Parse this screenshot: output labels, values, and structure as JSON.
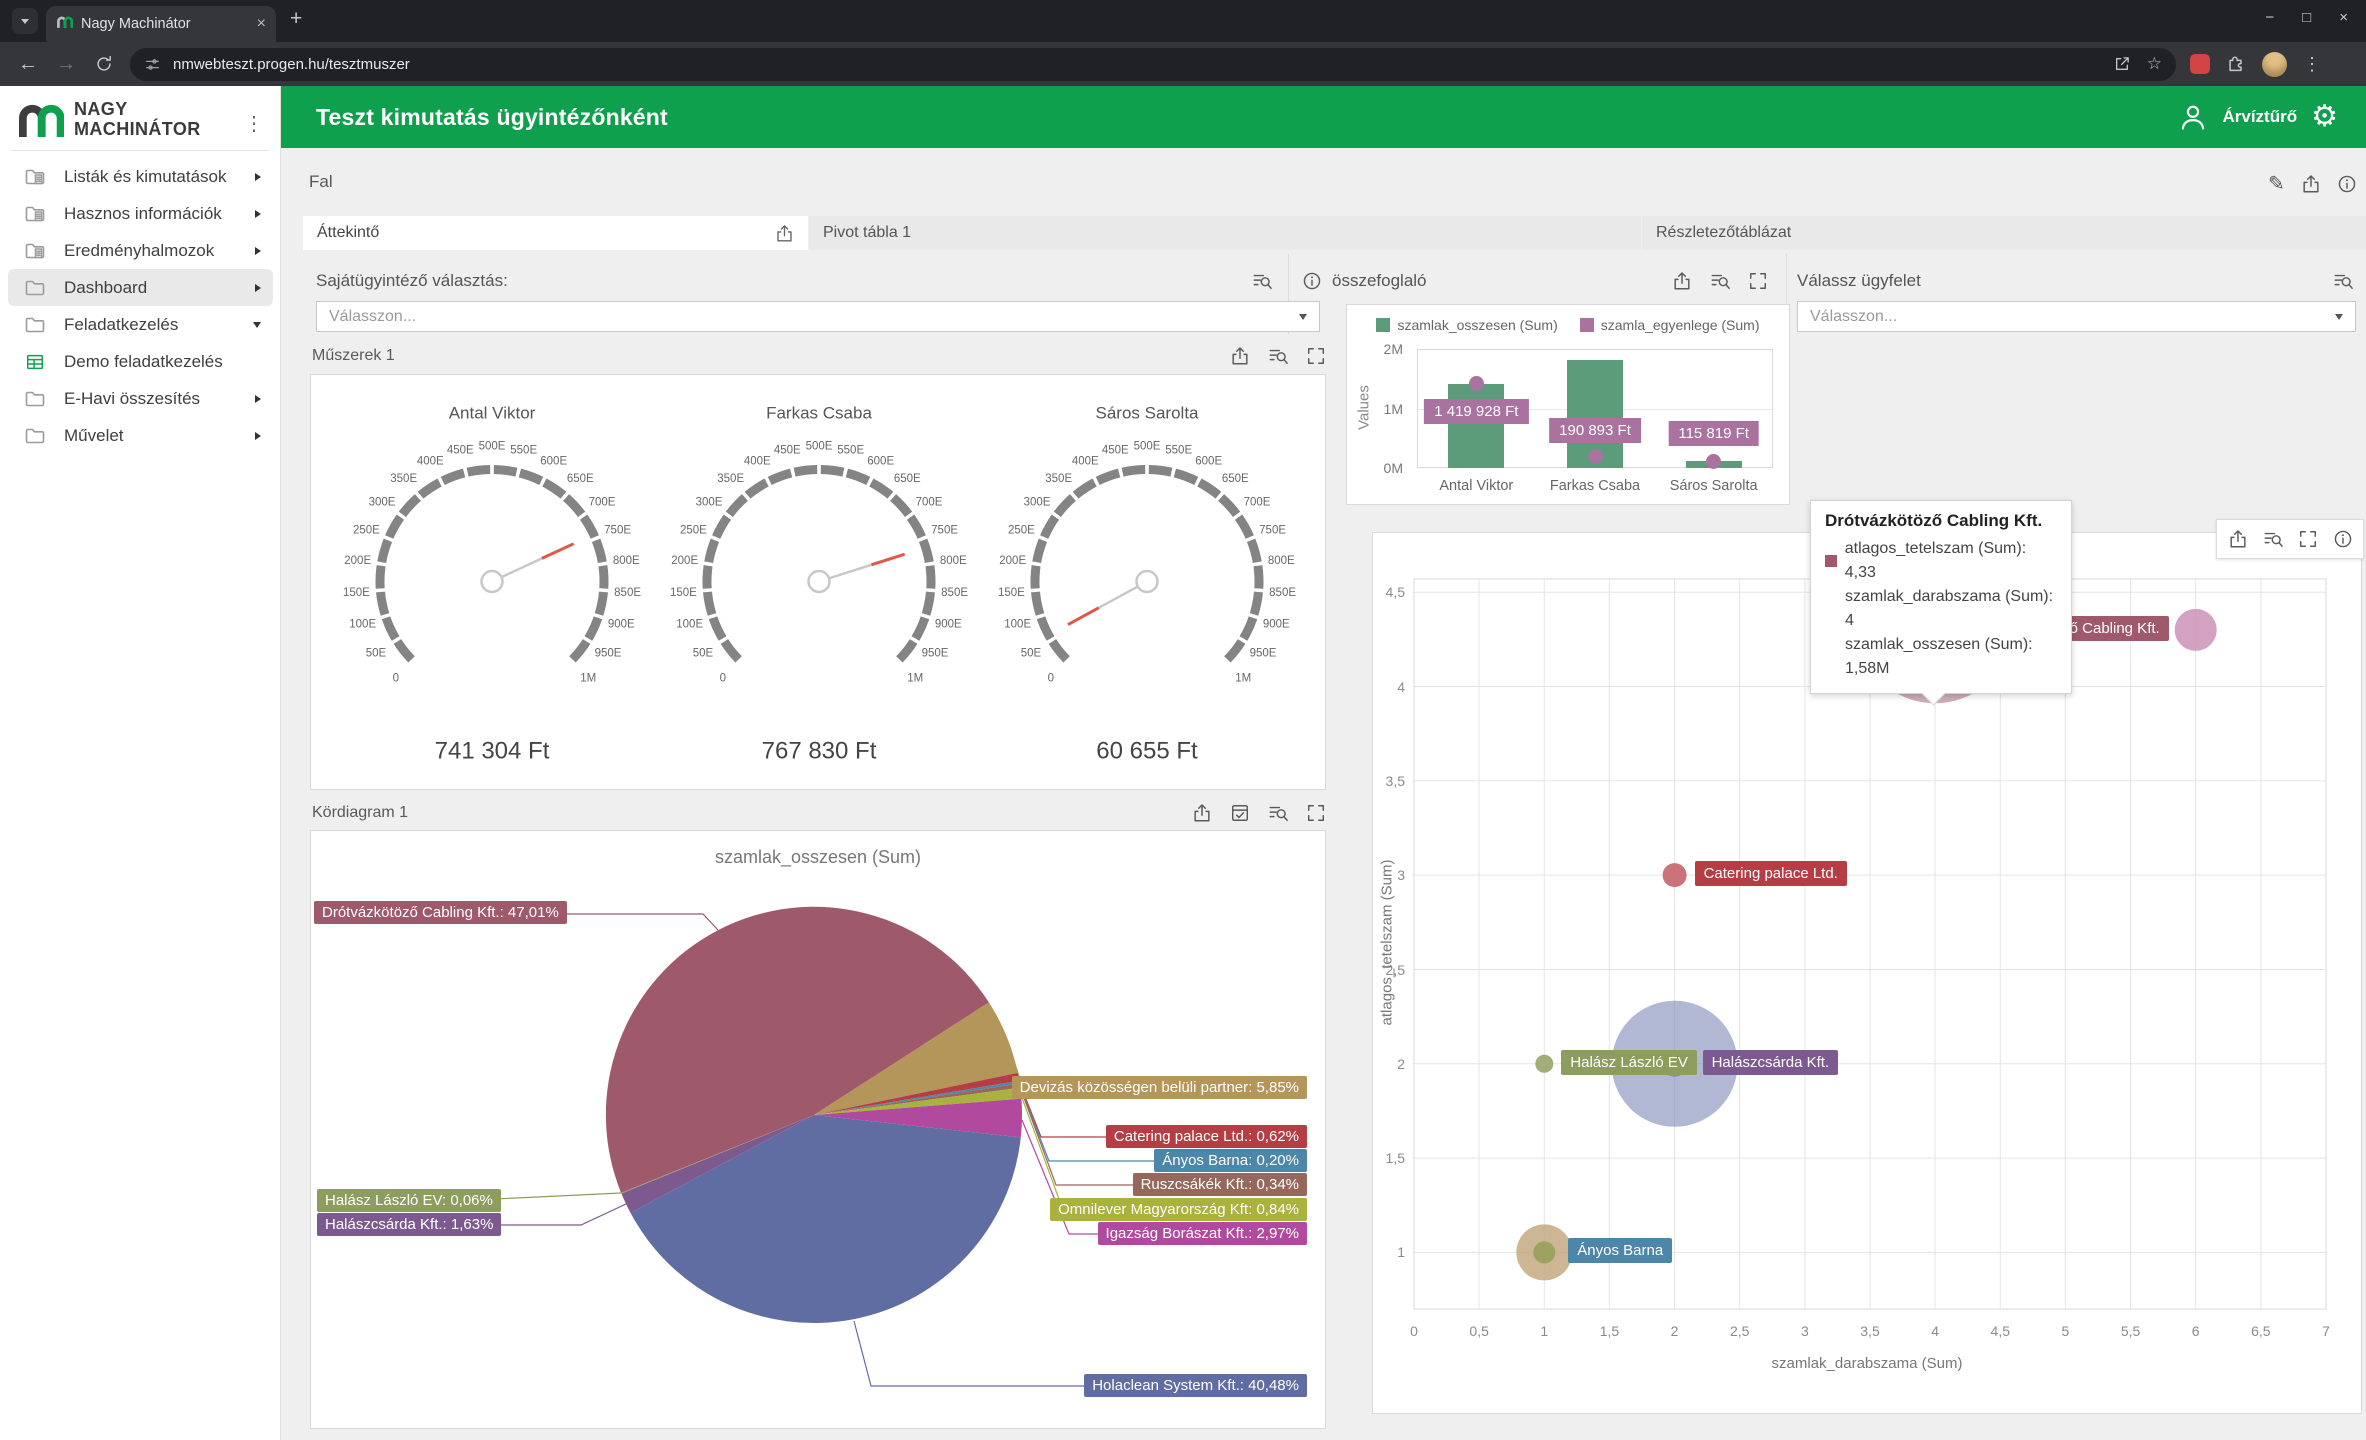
{
  "browser": {
    "tab_title": "Nagy Machinátor",
    "url": "nmwebteszt.progen.hu/tesztmuszer"
  },
  "sidebar": {
    "logo_line1": "NAGY",
    "logo_line2": "MACHINÁTOR",
    "items": [
      {
        "label": "Listák és kimutatások",
        "icon": "folder-doc-icon",
        "arrow": "right",
        "active": false
      },
      {
        "label": "Hasznos információk",
        "icon": "folder-doc-icon",
        "arrow": "right",
        "active": false
      },
      {
        "label": "Eredményhalmozok",
        "icon": "folder-doc-icon",
        "arrow": "right",
        "active": false
      },
      {
        "label": "Dashboard",
        "icon": "folder-icon",
        "arrow": "right",
        "active": true
      },
      {
        "label": "Feladatkezelés",
        "icon": "folder-icon",
        "arrow": "down",
        "active": false
      },
      {
        "label": "Demo feladatkezelés",
        "icon": "table-icon",
        "arrow": "",
        "active": false
      },
      {
        "label": "E-Havi összesítés",
        "icon": "folder-icon",
        "arrow": "right",
        "active": false
      },
      {
        "label": "Művelet",
        "icon": "folder-icon",
        "arrow": "right",
        "active": false
      }
    ]
  },
  "header": {
    "title": "Teszt kimutatás ügyintézőnként",
    "user": "Árvíztűrő"
  },
  "page": {
    "section": "Fal",
    "tabs": [
      "Áttekintő",
      "Pivot tábla 1",
      "Részletezőtáblázat"
    ]
  },
  "panels": {
    "agent_select": {
      "title": "Sajátügyintéző választás:",
      "placeholder": "Válasszon..."
    },
    "gauges": {
      "title": "Műszerek 1"
    },
    "pie": {
      "title": "Kördiagram 1"
    },
    "summary": {
      "title": "összefoglaló"
    },
    "customer_select": {
      "title": "Válassz ügyfelet",
      "placeholder": "Válasszon..."
    }
  },
  "tooltip": {
    "title": "Drótvázkötöző Cabling Kft.",
    "rows": [
      {
        "swatch": "#9e5a6b",
        "text": "atlagos_tetelszam (Sum): 4,33"
      },
      {
        "text": "szamlak_darabszama (Sum): 4"
      },
      {
        "text": "szamlak_osszesen (Sum): 1,58M"
      }
    ]
  },
  "chart_data": [
    {
      "type": "gauge",
      "title": "Antal Viktor",
      "value": 741304,
      "value_label": "741 304 Ft",
      "min": 0,
      "max": 1000000,
      "tick_step": 50000
    },
    {
      "type": "gauge",
      "title": "Farkas Csaba",
      "value": 767830,
      "value_label": "767 830 Ft",
      "min": 0,
      "max": 1000000,
      "tick_step": 50000
    },
    {
      "type": "gauge",
      "title": "Sáros Sarolta",
      "value": 60655,
      "value_label": "60 655 Ft",
      "min": 0,
      "max": 1000000,
      "tick_step": 50000
    },
    {
      "type": "bar",
      "title": "összefoglaló",
      "categories": [
        "Antal Viktor",
        "Farkas Csaba",
        "Sáros Sarolta"
      ],
      "series": [
        {
          "name": "szamlak_osszesen (Sum)",
          "style": "bar",
          "color": "#5d9c7b",
          "values": [
            1420000,
            1820000,
            115000
          ]
        },
        {
          "name": "szamla_egyenlege (Sum)",
          "style": "point",
          "color": "#a9729f",
          "values": [
            1419928,
            190893,
            115819
          ],
          "labels": [
            "1 419 928 Ft",
            "190 893 Ft",
            "115 819 Ft"
          ]
        }
      ],
      "ylabel": "Values",
      "ylim": [
        0,
        2000000
      ],
      "yticks": [
        {
          "v": 0,
          "label": "0M"
        },
        {
          "v": 1000000,
          "label": "1M"
        },
        {
          "v": 2000000,
          "label": "2M"
        }
      ],
      "legend_position": "top"
    },
    {
      "type": "pie",
      "title": "szamlak_osszesen (Sum)",
      "start_angle_deg": 202,
      "direction": "clockwise",
      "slices": [
        {
          "name": "Drótvázkötöző Cabling Kft.",
          "pct": 47.01,
          "label": "Drótvázkötöző Cabling Kft.: 47,01%",
          "color": "#9e5a6b"
        },
        {
          "name": "Devizás közösségen belüli partner",
          "pct": 5.85,
          "label": "Devizás közösségen belüli partner: 5,85%",
          "color": "#b4955a"
        },
        {
          "name": "Catering palace Ltd.",
          "pct": 0.62,
          "label": "Catering palace Ltd.: 0,62%",
          "color": "#b43e44"
        },
        {
          "name": "Ányos Barna",
          "pct": 0.2,
          "label": "Ányos Barna: 0,20%",
          "color": "#4c86a8"
        },
        {
          "name": "Ruszcsákék Kft.",
          "pct": 0.34,
          "label": "Ruszcsákék Kft.: 0,34%",
          "color": "#96685c"
        },
        {
          "name": "Omnilever Magyarország Kft",
          "pct": 0.84,
          "label": "Omnilever Magyarország Kft: 0,84%",
          "color": "#a9b23c"
        },
        {
          "name": "Igazság Borászat Kft.",
          "pct": 2.97,
          "label": "Igazság Borászat Kft.: 2,97%",
          "color": "#b14a9f"
        },
        {
          "name": "Holaclean System Kft.",
          "pct": 40.48,
          "label": "Holaclean System Kft.: 40,48%",
          "color": "#5f6da3"
        },
        {
          "name": "Halászcsárda Kft.",
          "pct": 1.63,
          "label": "Halászcsárda Kft.: 1,63%",
          "color": "#7c5a8f"
        },
        {
          "name": "Halász László EV",
          "pct": 0.06,
          "label": "Halász László EV: 0,06%",
          "color": "#8d9d5e"
        }
      ]
    },
    {
      "type": "scatter",
      "xlabel": "szamlak_darabszama (Sum)",
      "ylabel": "atlagos_tetelszam (Sum)",
      "xlim": [
        0,
        7
      ],
      "ylim": [
        0.7,
        4.57
      ],
      "xticks": [
        "0",
        "0,5",
        "1",
        "1,5",
        "2",
        "2,5",
        "3",
        "3,5",
        "4",
        "4,5",
        "5",
        "5,5",
        "6",
        "6,5",
        "7"
      ],
      "yticks": [
        "1",
        "1,5",
        "2",
        "2,5",
        "3",
        "3,5",
        "4",
        "4,5"
      ],
      "points": [
        {
          "name": "Drótvázkötöző Cabling Kft.",
          "x": 4,
          "y": 4.33,
          "r": 79,
          "color": "#9e5a6b",
          "opacity": 0.5
        },
        {
          "name": "Drótvázkötöző Cabling Kft.",
          "x": 6,
          "y": 4.3,
          "r": 21,
          "color": "#cb92b8",
          "opacity": 0.85,
          "label": {
            "text": "Drótvázkötöző Cabling Kft.",
            "bg": "#9e5a6b",
            "side": "left"
          }
        },
        {
          "name": "Catering palace Ltd.",
          "x": 2,
          "y": 3,
          "r": 12,
          "color": "#c4646c",
          "opacity": 0.9,
          "label": {
            "text": "Catering palace Ltd.",
            "bg": "#b43e44",
            "side": "right"
          }
        },
        {
          "name": "Halász László EV",
          "x": 1,
          "y": 2,
          "r": 9,
          "color": "#a2ad77",
          "opacity": 1,
          "label": {
            "text": "Halász László EV",
            "bg": "#8d9d5e",
            "side": "right"
          }
        },
        {
          "name": "Halászcsárda Kft.",
          "x": 2,
          "y": 2,
          "r": 63,
          "color": "#7d88b5",
          "opacity": 0.6,
          "dot": {
            "r": 13,
            "color": "#7a86c2"
          },
          "label": {
            "text": "Halászcsárda Kft.",
            "bg": "#7c5a8f",
            "side": "right",
            "dx": 28
          }
        },
        {
          "name": "Ányos Barna",
          "x": 1,
          "y": 1,
          "r": 28,
          "color": "#c0a478",
          "opacity": 0.8,
          "dot": {
            "r": 11,
            "color": "#97a05a"
          },
          "label": {
            "text": "Ányos Barna",
            "bg": "#4c86a8",
            "side": "right",
            "dx": 24
          }
        }
      ]
    }
  ]
}
